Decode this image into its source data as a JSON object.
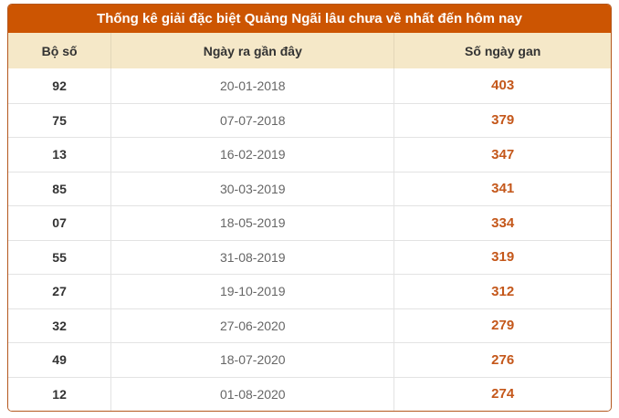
{
  "title": "Thống kê giải đặc biệt Quảng Ngãi lâu chưa về nhất đến hôm nay",
  "table": {
    "columns": [
      "Bộ số",
      "Ngày ra gần đây",
      "Số ngày gan"
    ],
    "rows": [
      {
        "bo_so": "92",
        "ngay_ra_gan_day": "20-01-2018",
        "so_ngay_gan": "403"
      },
      {
        "bo_so": "75",
        "ngay_ra_gan_day": "07-07-2018",
        "so_ngay_gan": "379"
      },
      {
        "bo_so": "13",
        "ngay_ra_gan_day": "16-02-2019",
        "so_ngay_gan": "347"
      },
      {
        "bo_so": "85",
        "ngay_ra_gan_day": "30-03-2019",
        "so_ngay_gan": "341"
      },
      {
        "bo_so": "07",
        "ngay_ra_gan_day": "18-05-2019",
        "so_ngay_gan": "334"
      },
      {
        "bo_so": "55",
        "ngay_ra_gan_day": "31-08-2019",
        "so_ngay_gan": "319"
      },
      {
        "bo_so": "27",
        "ngay_ra_gan_day": "19-10-2019",
        "so_ngay_gan": "312"
      },
      {
        "bo_so": "32",
        "ngay_ra_gan_day": "27-06-2020",
        "so_ngay_gan": "279"
      },
      {
        "bo_so": "49",
        "ngay_ra_gan_day": "18-07-2020",
        "so_ngay_gan": "276"
      },
      {
        "bo_so": "12",
        "ngay_ra_gan_day": "01-08-2020",
        "so_ngay_gan": "274"
      }
    ]
  },
  "colors": {
    "title_bg": "#cc5502",
    "title_text": "#ffffff",
    "table_border": "#b4571e",
    "header_bg": "#f5e8c8",
    "header_text": "#333333",
    "row_bg": "#ffffff",
    "row_divider": "#e3e3e3",
    "bo_so_text": "#333333",
    "date_text": "#666666",
    "gan_text": "#c4571a"
  }
}
